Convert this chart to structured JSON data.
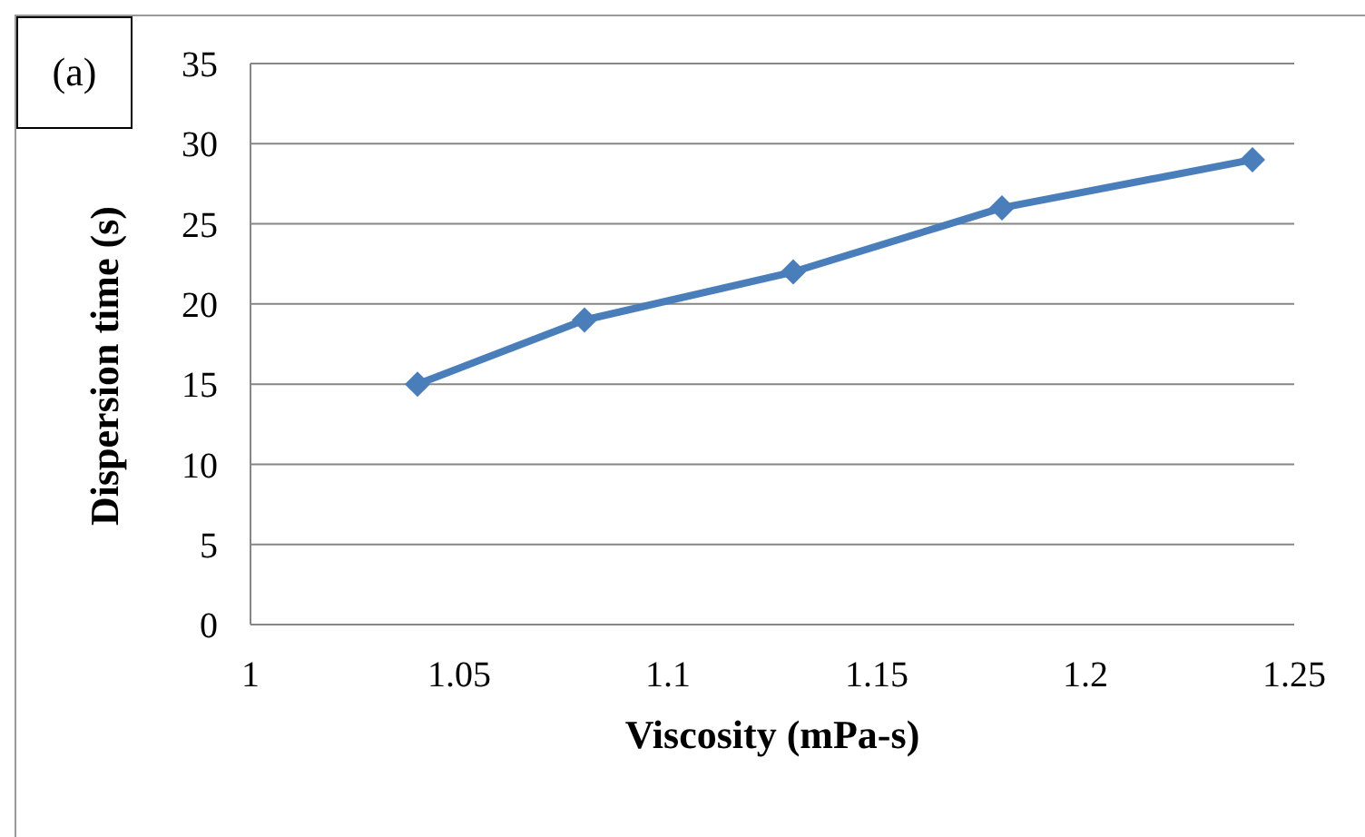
{
  "chart_data": {
    "type": "line",
    "xlabel": "Viscosity (mPa-s)",
    "ylabel": "Dispersion time (s)",
    "annotations": [
      "(a)"
    ],
    "x": [
      1.04,
      1.08,
      1.13,
      1.18,
      1.24
    ],
    "series": [
      {
        "color": "#4a7ebb",
        "values": [
          15,
          19,
          22,
          26,
          29
        ]
      }
    ],
    "xlim": [
      1,
      1.25
    ],
    "xticks": [
      1,
      1.05,
      1.1,
      1.15,
      1.2,
      1.25
    ],
    "ylim": [
      0,
      35
    ],
    "yticks": [
      0,
      5,
      10,
      15,
      20,
      25,
      30,
      35
    ],
    "grid": "y",
    "legend": false,
    "marker": "diamond",
    "line_style": "solid"
  }
}
